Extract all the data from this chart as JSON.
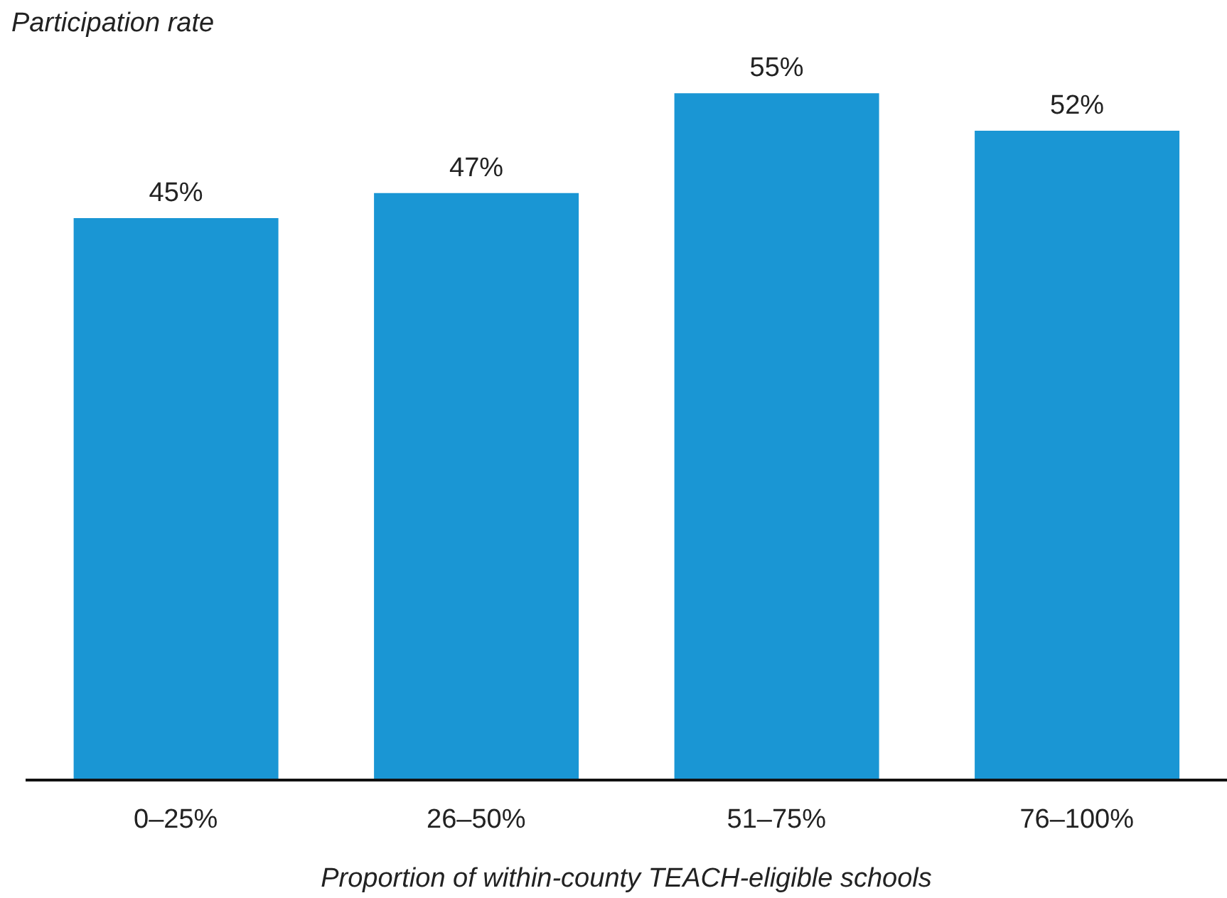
{
  "chart_data": {
    "type": "bar",
    "ylabel": "Participation rate",
    "xlabel": "Proportion of within-county TEACH-eligible schools",
    "categories": [
      "0–25%",
      "26–50%",
      "51–75%",
      "76–100%"
    ],
    "values": [
      45,
      47,
      55,
      52
    ],
    "value_labels": [
      "45%",
      "47%",
      "55%",
      "52%"
    ],
    "color": "#1a96d4",
    "grid": false
  }
}
